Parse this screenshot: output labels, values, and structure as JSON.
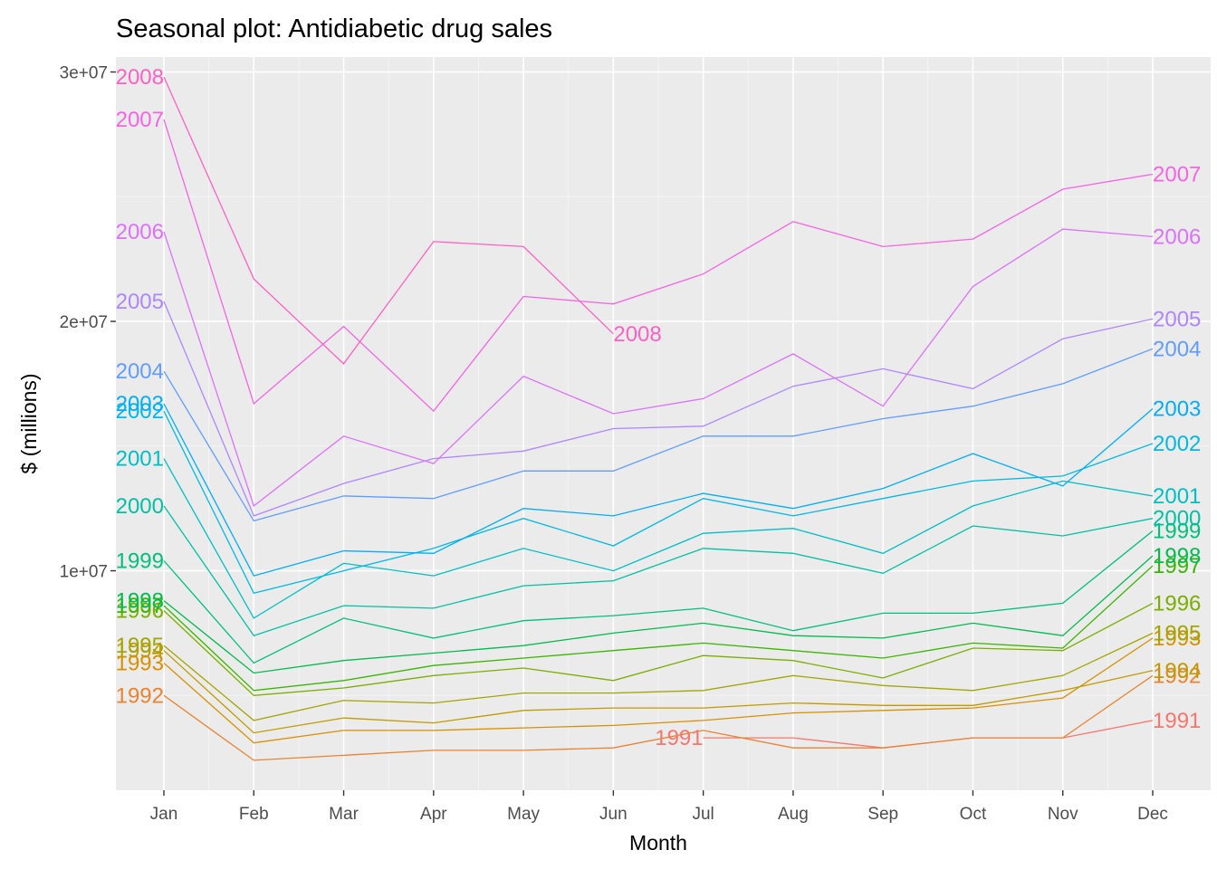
{
  "chart_data": {
    "type": "line",
    "title": "Seasonal plot: Antidiabetic drug sales",
    "xlabel": "Month",
    "ylabel": "$ (millions)",
    "categories": [
      "Jan",
      "Feb",
      "Mar",
      "Apr",
      "May",
      "Jun",
      "Jul",
      "Aug",
      "Sep",
      "Oct",
      "Nov",
      "Dec"
    ],
    "y_ticks": [
      {
        "value": 10000000,
        "label": "1e+07"
      },
      {
        "value": 20000000,
        "label": "2e+07"
      },
      {
        "value": 30000000,
        "label": "3e+07"
      }
    ],
    "ylim": [
      1200000,
      30600000
    ],
    "grid": true,
    "series": [
      {
        "name": "1991",
        "color": "#F8766D",
        "values": [
          null,
          null,
          null,
          null,
          null,
          null,
          3300000,
          3300000,
          2900000,
          3300000,
          3300000,
          4000000
        ]
      },
      {
        "name": "1992",
        "color": "#EA8331",
        "values": [
          5000000,
          2400000,
          2600000,
          2800000,
          2800000,
          2900000,
          3600000,
          2900000,
          2900000,
          3300000,
          3300000,
          5800000
        ]
      },
      {
        "name": "1993",
        "color": "#D89000",
        "values": [
          6300000,
          3100000,
          3600000,
          3600000,
          3700000,
          3800000,
          4000000,
          4300000,
          4400000,
          4500000,
          4900000,
          7300000
        ]
      },
      {
        "name": "1994",
        "color": "#C09B00",
        "values": [
          6800000,
          3500000,
          4100000,
          3900000,
          4400000,
          4500000,
          4500000,
          4700000,
          4600000,
          4600000,
          5200000,
          6000000
        ]
      },
      {
        "name": "1995",
        "color": "#A3A500",
        "values": [
          7000000,
          4000000,
          4800000,
          4700000,
          5100000,
          5100000,
          5200000,
          5800000,
          5400000,
          5200000,
          5800000,
          7500000
        ]
      },
      {
        "name": "1996",
        "color": "#7CAE00",
        "values": [
          8400000,
          5000000,
          5300000,
          5800000,
          6100000,
          5600000,
          6600000,
          6400000,
          5700000,
          6900000,
          6800000,
          8700000
        ]
      },
      {
        "name": "1997",
        "color": "#39B600",
        "values": [
          8600000,
          5200000,
          5600000,
          6200000,
          6500000,
          6800000,
          7100000,
          6800000,
          6500000,
          7100000,
          6900000,
          10200000
        ]
      },
      {
        "name": "1998",
        "color": "#00BB4E",
        "values": [
          8800000,
          5900000,
          6400000,
          6700000,
          7000000,
          7500000,
          7900000,
          7400000,
          7300000,
          7900000,
          7400000,
          10600000
        ]
      },
      {
        "name": "1999",
        "color": "#00BF7D",
        "values": [
          10400000,
          6300000,
          8100000,
          7300000,
          8000000,
          8200000,
          8500000,
          7600000,
          8300000,
          8300000,
          8700000,
          11600000
        ]
      },
      {
        "name": "2000",
        "color": "#00C1A3",
        "values": [
          12600000,
          7400000,
          8600000,
          8500000,
          9400000,
          9600000,
          10900000,
          10700000,
          9900000,
          11800000,
          11400000,
          12100000
        ]
      },
      {
        "name": "2001",
        "color": "#00BFC4",
        "values": [
          14500000,
          8100000,
          10300000,
          9800000,
          10900000,
          10000000,
          11500000,
          11700000,
          10700000,
          12600000,
          13600000,
          13000000
        ]
      },
      {
        "name": "2002",
        "color": "#00B9E3",
        "values": [
          16400000,
          9100000,
          10000000,
          10900000,
          12100000,
          11000000,
          12900000,
          12200000,
          12900000,
          13600000,
          13800000,
          15100000
        ]
      },
      {
        "name": "2003",
        "color": "#00ADFA",
        "values": [
          16700000,
          9800000,
          10800000,
          10700000,
          12500000,
          12200000,
          13100000,
          12500000,
          13300000,
          14700000,
          13400000,
          16500000
        ]
      },
      {
        "name": "2004",
        "color": "#619CFF",
        "values": [
          18000000,
          12000000,
          13000000,
          12900000,
          14000000,
          14000000,
          15400000,
          15400000,
          16100000,
          16600000,
          17500000,
          18900000
        ]
      },
      {
        "name": "2005",
        "color": "#AE87FF",
        "values": [
          20800000,
          12200000,
          13500000,
          14500000,
          14800000,
          15700000,
          15800000,
          17400000,
          18100000,
          17300000,
          19300000,
          20100000
        ]
      },
      {
        "name": "2006",
        "color": "#DB72FB",
        "values": [
          23600000,
          12600000,
          15400000,
          14300000,
          17800000,
          16300000,
          16900000,
          18700000,
          16600000,
          21400000,
          23700000,
          23400000
        ]
      },
      {
        "name": "2007",
        "color": "#F564E3",
        "values": [
          28100000,
          16700000,
          19800000,
          16400000,
          21000000,
          20700000,
          21900000,
          24000000,
          23000000,
          23300000,
          25300000,
          25900000
        ]
      },
      {
        "name": "2008",
        "color": "#FF61C3",
        "values": [
          29800000,
          21700000,
          18300000,
          23200000,
          23000000,
          19500000,
          null,
          null,
          null,
          null,
          null,
          null
        ]
      }
    ]
  }
}
